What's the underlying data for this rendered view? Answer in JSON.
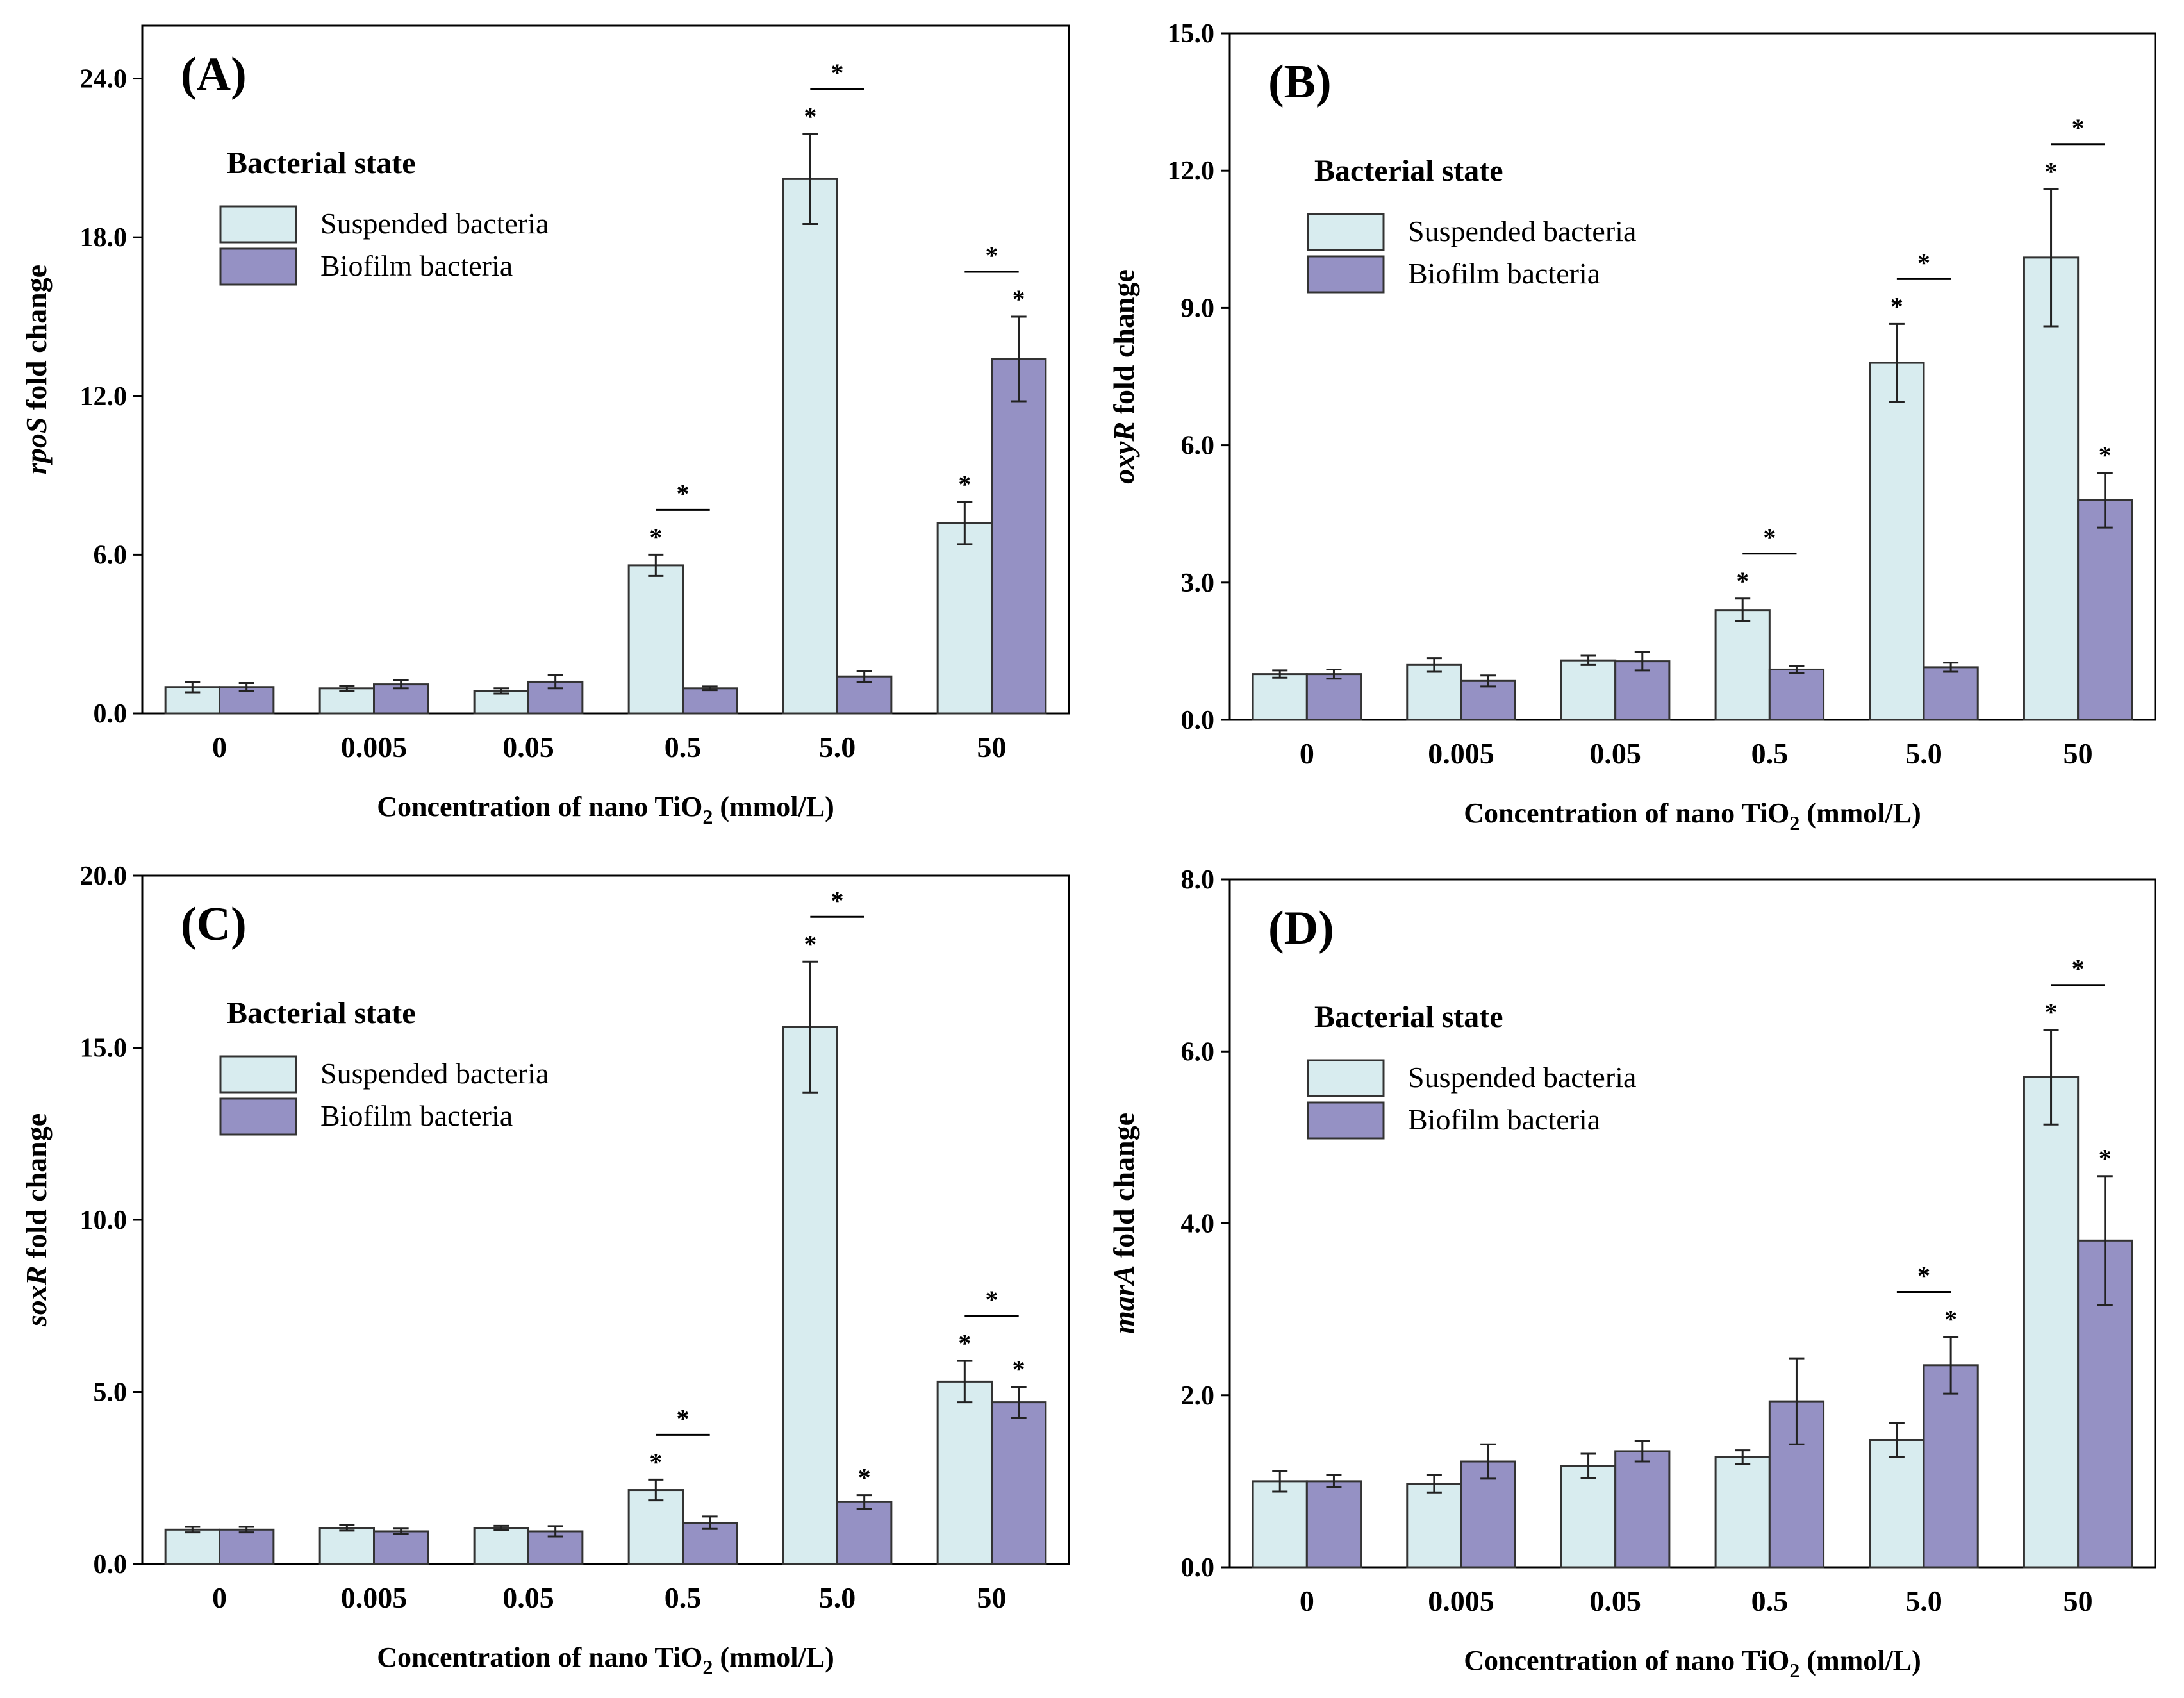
{
  "colors": {
    "suspended": "#d8ecef",
    "biofilm": "#9591c4",
    "stroke": "#333333"
  },
  "legend": {
    "title": "Bacterial state",
    "entries": [
      "Suspended bacteria",
      "Biofilm bacteria"
    ]
  },
  "chart_data": [
    {
      "type": "bar",
      "panel_label": "(A)",
      "gene": "rpoS",
      "ylabel_suffix": " fold change",
      "xlabel": "Concentration of nano TiO",
      "xlabel_sub": "2",
      "xlabel_unit": " (mmol/L)",
      "categories": [
        "0",
        "0.005",
        "0.05",
        "0.5",
        "5.0",
        "50"
      ],
      "ylim": [
        0,
        26
      ],
      "yticks": [
        "0.0",
        "6.0",
        "12.0",
        "18.0",
        "24.0"
      ],
      "series": [
        {
          "name": "Suspended bacteria",
          "values": [
            1.0,
            0.95,
            0.85,
            5.6,
            20.2,
            7.2
          ],
          "errors": [
            0.2,
            0.1,
            0.1,
            0.4,
            1.7,
            0.8
          ],
          "stars": [
            false,
            false,
            false,
            true,
            true,
            true
          ]
        },
        {
          "name": "Biofilm bacteria",
          "values": [
            1.0,
            1.1,
            1.2,
            0.95,
            1.4,
            13.4
          ],
          "errors": [
            0.15,
            0.15,
            0.25,
            0.07,
            0.2,
            1.6
          ],
          "stars": [
            false,
            false,
            false,
            false,
            false,
            true
          ]
        }
      ],
      "pair_stars": [
        false,
        false,
        false,
        true,
        true,
        true
      ]
    },
    {
      "type": "bar",
      "panel_label": "(B)",
      "gene": "oxyR",
      "ylabel_suffix": " fold change",
      "xlabel": "Concentration of nano TiO",
      "xlabel_sub": "2",
      "xlabel_unit": " (mmol/L)",
      "categories": [
        "0",
        "0.005",
        "0.05",
        "0.5",
        "5.0",
        "50"
      ],
      "ylim": [
        0,
        15
      ],
      "yticks": [
        "0.0",
        "3.0",
        "6.0",
        "9.0",
        "12.0",
        "15.0"
      ],
      "series": [
        {
          "name": "Suspended bacteria",
          "values": [
            1.0,
            1.2,
            1.3,
            2.4,
            7.8,
            10.1
          ],
          "errors": [
            0.08,
            0.15,
            0.1,
            0.25,
            0.85,
            1.5
          ],
          "stars": [
            false,
            false,
            false,
            true,
            true,
            true
          ]
        },
        {
          "name": "Biofilm bacteria",
          "values": [
            1.0,
            0.85,
            1.28,
            1.1,
            1.15,
            4.8
          ],
          "errors": [
            0.1,
            0.12,
            0.2,
            0.08,
            0.1,
            0.6
          ],
          "stars": [
            false,
            false,
            false,
            false,
            false,
            true
          ]
        }
      ],
      "pair_stars": [
        false,
        false,
        false,
        true,
        true,
        true
      ]
    },
    {
      "type": "bar",
      "panel_label": "(C)",
      "gene": "soxR",
      "ylabel_suffix": " fold change",
      "xlabel": "Concentration of nano TiO",
      "xlabel_sub": "2",
      "xlabel_unit": " (mmol/L)",
      "categories": [
        "0",
        "0.005",
        "0.05",
        "0.5",
        "5.0",
        "50"
      ],
      "ylim": [
        0,
        20
      ],
      "yticks": [
        "0.0",
        "5.0",
        "10.0",
        "15.0",
        "20.0"
      ],
      "series": [
        {
          "name": "Suspended bacteria",
          "values": [
            1.0,
            1.05,
            1.05,
            2.15,
            15.6,
            5.3
          ],
          "errors": [
            0.08,
            0.08,
            0.06,
            0.3,
            1.9,
            0.6
          ],
          "stars": [
            false,
            false,
            false,
            true,
            true,
            true
          ]
        },
        {
          "name": "Biofilm bacteria",
          "values": [
            1.0,
            0.95,
            0.95,
            1.2,
            1.8,
            4.7
          ],
          "errors": [
            0.08,
            0.08,
            0.15,
            0.18,
            0.2,
            0.45
          ],
          "stars": [
            false,
            false,
            false,
            false,
            true,
            true
          ]
        }
      ],
      "pair_stars": [
        false,
        false,
        false,
        true,
        true,
        true
      ]
    },
    {
      "type": "bar",
      "panel_label": "(D)",
      "gene": "marA",
      "ylabel_suffix": " fold change",
      "xlabel": "Concentration of nano TiO",
      "xlabel_sub": "2",
      "xlabel_unit": " (mmol/L)",
      "categories": [
        "0",
        "0.005",
        "0.05",
        "0.5",
        "5.0",
        "50"
      ],
      "ylim": [
        0,
        8
      ],
      "yticks": [
        "0.0",
        "2.0",
        "4.0",
        "6.0",
        "8.0"
      ],
      "series": [
        {
          "name": "Suspended bacteria",
          "values": [
            1.0,
            0.97,
            1.18,
            1.28,
            1.48,
            5.7
          ],
          "errors": [
            0.12,
            0.1,
            0.14,
            0.08,
            0.2,
            0.55
          ],
          "stars": [
            false,
            false,
            false,
            false,
            false,
            true
          ]
        },
        {
          "name": "Biofilm bacteria",
          "values": [
            1.0,
            1.23,
            1.35,
            1.93,
            2.35,
            3.8
          ],
          "errors": [
            0.07,
            0.2,
            0.12,
            0.5,
            0.33,
            0.75
          ],
          "stars": [
            false,
            false,
            false,
            false,
            true,
            true
          ]
        }
      ],
      "pair_stars": [
        false,
        false,
        false,
        false,
        true,
        true
      ]
    }
  ]
}
